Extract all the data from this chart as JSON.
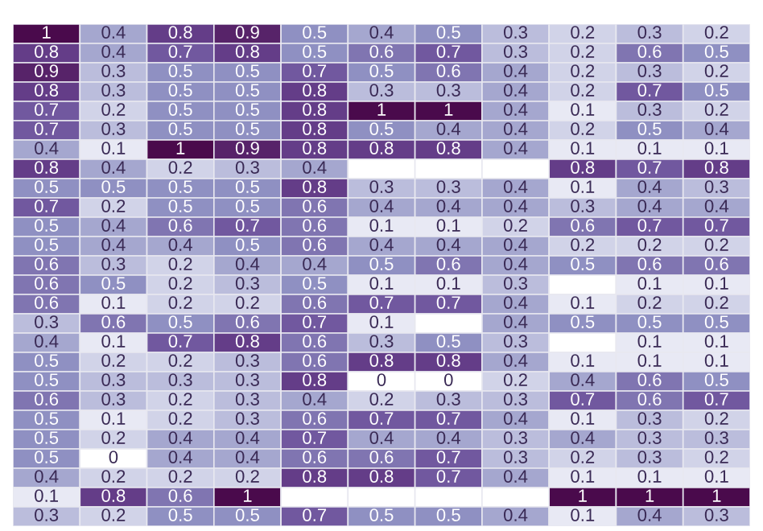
{
  "chart_data": {
    "type": "heatmap",
    "data_labels": true,
    "colors": [
      "#ffffff",
      "#c5c8e2",
      "#8f91c2",
      "#6a4a97",
      "#4a0a4c"
    ],
    "categories": [
      null,
      null,
      null,
      null,
      null,
      null,
      null,
      null,
      null,
      null,
      null
    ],
    "y_categories": [
      null,
      null,
      null,
      null,
      null,
      null,
      null,
      null,
      null,
      null,
      null,
      null,
      null,
      null,
      null,
      null,
      null,
      null,
      null,
      null,
      null,
      null,
      null,
      null,
      null,
      null
    ],
    "cells": [
      [
        1,
        0.4,
        0.8,
        0.9,
        0.5,
        0.4,
        0.5,
        0.3,
        0.2,
        0.3,
        0.2
      ],
      [
        0.8,
        0.4,
        0.7,
        0.8,
        0.5,
        0.6,
        0.7,
        0.3,
        0.2,
        0.6,
        0.5
      ],
      [
        0.9,
        0.3,
        0.5,
        0.5,
        0.7,
        0.5,
        0.6,
        0.4,
        0.2,
        0.3,
        0.2
      ],
      [
        0.8,
        0.3,
        0.5,
        0.5,
        0.8,
        0.3,
        0.3,
        0.4,
        0.2,
        0.7,
        0.5
      ],
      [
        0.7,
        0.2,
        0.5,
        0.5,
        0.8,
        1,
        1,
        0.4,
        0.1,
        0.3,
        0.2
      ],
      [
        0.7,
        0.3,
        0.5,
        0.5,
        0.8,
        0.5,
        0.4,
        0.4,
        0.2,
        0.5,
        0.4
      ],
      [
        0.4,
        0.1,
        1,
        0.9,
        0.8,
        0.8,
        0.8,
        0.4,
        0.1,
        0.1,
        0.1
      ],
      [
        0.8,
        0.4,
        0.2,
        0.3,
        0.4,
        null,
        null,
        null,
        0.8,
        0.7,
        0.8
      ],
      [
        0.5,
        0.5,
        0.5,
        0.5,
        0.8,
        0.3,
        0.3,
        0.4,
        0.1,
        0.4,
        0.3
      ],
      [
        0.7,
        0.2,
        0.5,
        0.5,
        0.6,
        0.4,
        0.4,
        0.4,
        0.3,
        0.4,
        0.4
      ],
      [
        0.5,
        0.4,
        0.6,
        0.7,
        0.6,
        0.1,
        0.1,
        0.2,
        0.6,
        0.7,
        0.7
      ],
      [
        0.5,
        0.4,
        0.4,
        0.5,
        0.6,
        0.4,
        0.4,
        0.4,
        0.2,
        0.2,
        0.2
      ],
      [
        0.6,
        0.3,
        0.2,
        0.4,
        0.4,
        0.5,
        0.6,
        0.4,
        0.5,
        0.6,
        0.6
      ],
      [
        0.6,
        0.5,
        0.2,
        0.3,
        0.5,
        0.1,
        0.1,
        0.3,
        null,
        0.1,
        0.1
      ],
      [
        0.6,
        0.1,
        0.2,
        0.2,
        0.6,
        0.7,
        0.7,
        0.4,
        0.1,
        0.2,
        0.2
      ],
      [
        0.3,
        0.6,
        0.5,
        0.6,
        0.7,
        0.1,
        null,
        0.4,
        0.5,
        0.5,
        0.5
      ],
      [
        0.4,
        0.1,
        0.7,
        0.8,
        0.6,
        0.3,
        0.5,
        0.3,
        null,
        0.1,
        0.1
      ],
      [
        0.5,
        0.2,
        0.2,
        0.3,
        0.6,
        0.8,
        0.8,
        0.4,
        0.1,
        0.1,
        0.1
      ],
      [
        0.5,
        0.3,
        0.3,
        0.3,
        0.8,
        0,
        0,
        0.2,
        0.4,
        0.6,
        0.5
      ],
      [
        0.6,
        0.3,
        0.2,
        0.3,
        0.4,
        0.2,
        0.3,
        0.3,
        0.7,
        0.6,
        0.7
      ],
      [
        0.5,
        0.1,
        0.2,
        0.3,
        0.6,
        0.7,
        0.7,
        0.4,
        0.1,
        0.3,
        0.2
      ],
      [
        0.5,
        0.2,
        0.4,
        0.4,
        0.7,
        0.4,
        0.4,
        0.3,
        0.4,
        0.3,
        0.3
      ],
      [
        0.5,
        0,
        0.4,
        0.4,
        0.6,
        0.6,
        0.7,
        0.3,
        0.2,
        0.3,
        0.2
      ],
      [
        0.4,
        0.2,
        0.2,
        0.2,
        0.8,
        0.8,
        0.7,
        0.4,
        0.1,
        0.1,
        0.1
      ],
      [
        0.1,
        0.8,
        0.6,
        1,
        null,
        null,
        null,
        null,
        1,
        1,
        1
      ],
      [
        0.3,
        0.2,
        0.5,
        0.5,
        0.7,
        0.5,
        0.5,
        0.4,
        0.1,
        0.4,
        0.3
      ]
    ]
  }
}
